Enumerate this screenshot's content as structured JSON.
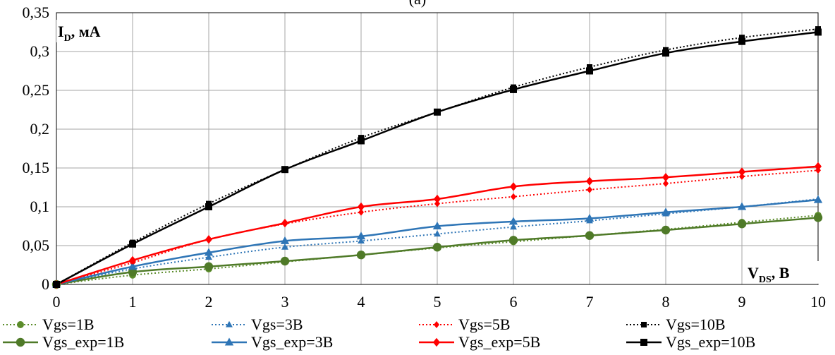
{
  "chart_data": {
    "type": "line",
    "title_fragment": "(a)",
    "ylabel_main": "I",
    "ylabel_sub": "D",
    "ylabel_unit": ", мА",
    "xlabel_main": "V",
    "xlabel_sub": "DS",
    "xlabel_unit": ", В",
    "xlim": [
      0,
      10
    ],
    "ylim": [
      0,
      0.35
    ],
    "x_ticks": [
      "0",
      "1",
      "2",
      "3",
      "4",
      "5",
      "6",
      "7",
      "8",
      "9",
      "10"
    ],
    "y_ticks": [
      "0",
      "0,05",
      "0,1",
      "0,15",
      "0,2",
      "0,25",
      "0,3",
      "0,35"
    ],
    "grid": true,
    "legend_position": "bottom",
    "x": [
      0,
      1,
      2,
      3,
      4,
      5,
      6,
      7,
      8,
      9,
      10
    ],
    "series": [
      {
        "name": "Vgs=1В",
        "color": "#5b8c2a",
        "dash": "dotted",
        "marker": "circle",
        "values": [
          0,
          0.012,
          0.02,
          0.029,
          0.038,
          0.047,
          0.055,
          0.063,
          0.071,
          0.08,
          0.089
        ]
      },
      {
        "name": "Vgs=3В",
        "color": "#2e75b6",
        "dash": "dotted",
        "marker": "triangle",
        "values": [
          0,
          0.02,
          0.035,
          0.048,
          0.056,
          0.065,
          0.074,
          0.082,
          0.091,
          0.1,
          0.11
        ]
      },
      {
        "name": "Vgs=5В",
        "color": "#ff0000",
        "dash": "dotted",
        "marker": "diamond",
        "values": [
          0,
          0.028,
          0.058,
          0.078,
          0.093,
          0.104,
          0.113,
          0.122,
          0.13,
          0.139,
          0.147
        ]
      },
      {
        "name": "Vgs=10В",
        "color": "#000000",
        "dash": "dotted",
        "marker": "square",
        "values": [
          0,
          0.054,
          0.104,
          0.148,
          0.189,
          0.222,
          0.254,
          0.28,
          0.302,
          0.318,
          0.329
        ]
      },
      {
        "name": "Vgs_exp=1В",
        "color": "#4f7a28",
        "dash": "solid",
        "marker": "circle",
        "values": [
          0,
          0.016,
          0.023,
          0.03,
          0.038,
          0.048,
          0.057,
          0.063,
          0.07,
          0.078,
          0.086
        ]
      },
      {
        "name": "Vgs_exp=3В",
        "color": "#2e75b6",
        "dash": "solid",
        "marker": "triangle",
        "values": [
          0,
          0.023,
          0.041,
          0.056,
          0.062,
          0.075,
          0.081,
          0.085,
          0.093,
          0.1,
          0.109
        ]
      },
      {
        "name": "Vgs_exp=5В",
        "color": "#ff0000",
        "dash": "solid",
        "marker": "diamond",
        "values": [
          0,
          0.031,
          0.058,
          0.079,
          0.1,
          0.11,
          0.126,
          0.133,
          0.138,
          0.145,
          0.152
        ]
      },
      {
        "name": "Vgs_exp=10В",
        "color": "#000000",
        "dash": "solid",
        "marker": "square",
        "values": [
          0,
          0.052,
          0.1,
          0.148,
          0.185,
          0.222,
          0.251,
          0.275,
          0.298,
          0.313,
          0.325
        ]
      }
    ]
  }
}
